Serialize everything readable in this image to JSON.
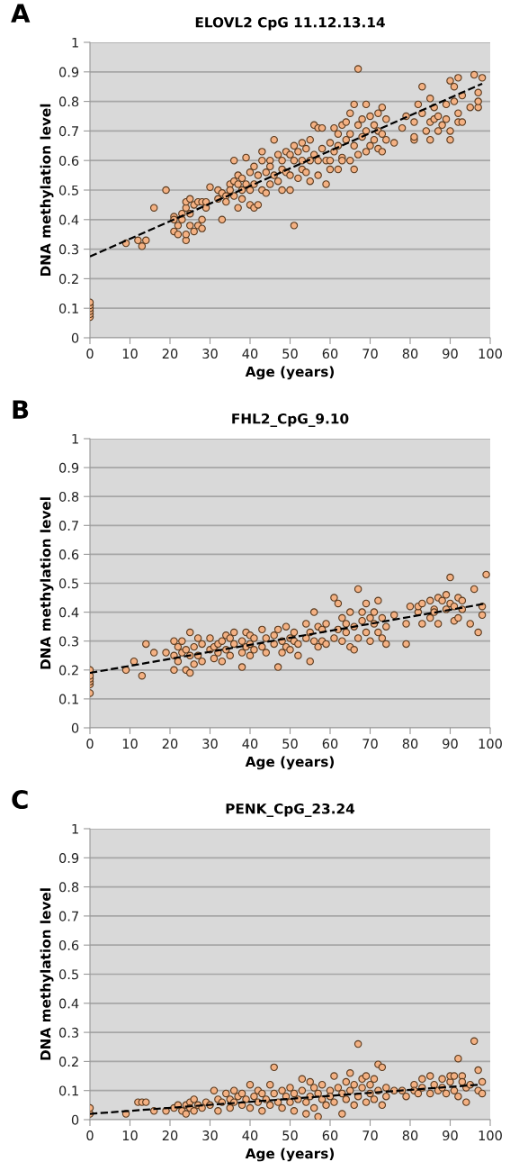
{
  "chart_data": [
    {
      "type": "scatter",
      "title": "ELOVL2 CpG 11.12.13.14",
      "xlabel": "Age (years)",
      "ylabel": "DNA methylation level",
      "annotations": [
        "A"
      ],
      "xlim": [
        0,
        100
      ],
      "xticks": [
        0,
        10,
        20,
        30,
        40,
        50,
        60,
        70,
        80,
        90,
        100
      ],
      "ylim": [
        0,
        1
      ],
      "yticks": [
        0,
        0.1,
        0.2,
        0.3,
        0.4,
        0.5,
        0.6,
        0.7,
        0.8,
        0.9,
        1
      ],
      "grid": "y",
      "marker": "circle",
      "series": [
        {
          "color": "#f4b183",
          "x": [
            0,
            0,
            0,
            0,
            0,
            0,
            9,
            12,
            13,
            14,
            16,
            19,
            21,
            21,
            21,
            22,
            22,
            23,
            23,
            24,
            24,
            24,
            24,
            25,
            25,
            25,
            26,
            26,
            27,
            27,
            28,
            28,
            28,
            29,
            29,
            30,
            32,
            32,
            33,
            33,
            34,
            34,
            35,
            35,
            36,
            36,
            36,
            37,
            37,
            37,
            38,
            38,
            38,
            39,
            39,
            40,
            40,
            40,
            41,
            41,
            41,
            42,
            42,
            43,
            43,
            43,
            44,
            44,
            45,
            45,
            45,
            46,
            46,
            47,
            47,
            48,
            48,
            48,
            49,
            49,
            50,
            50,
            50,
            51,
            51,
            51,
            52,
            52,
            53,
            53,
            53,
            54,
            54,
            55,
            55,
            55,
            56,
            56,
            57,
            57,
            57,
            58,
            58,
            59,
            59,
            60,
            60,
            60,
            61,
            61,
            62,
            62,
            62,
            63,
            63,
            63,
            64,
            64,
            65,
            65,
            65,
            66,
            66,
            66,
            67,
            67,
            67,
            68,
            68,
            69,
            69,
            69,
            70,
            70,
            71,
            71,
            72,
            72,
            72,
            73,
            73,
            73,
            74,
            74,
            76,
            78,
            79,
            81,
            81,
            81,
            82,
            83,
            83,
            84,
            85,
            85,
            85,
            86,
            86,
            87,
            87,
            88,
            89,
            89,
            90,
            90,
            90,
            91,
            91,
            92,
            92,
            92,
            93,
            93,
            95,
            96,
            97,
            97,
            97,
            98
          ],
          "values": [
            0.07,
            0.08,
            0.09,
            0.1,
            0.11,
            0.12,
            0.32,
            0.33,
            0.31,
            0.33,
            0.44,
            0.5,
            0.41,
            0.36,
            0.4,
            0.35,
            0.38,
            0.4,
            0.42,
            0.33,
            0.35,
            0.44,
            0.46,
            0.47,
            0.38,
            0.42,
            0.36,
            0.45,
            0.46,
            0.38,
            0.4,
            0.46,
            0.37,
            0.44,
            0.46,
            0.51,
            0.47,
            0.5,
            0.4,
            0.49,
            0.48,
            0.46,
            0.52,
            0.5,
            0.6,
            0.53,
            0.48,
            0.44,
            0.52,
            0.55,
            0.5,
            0.47,
            0.54,
            0.61,
            0.52,
            0.45,
            0.56,
            0.5,
            0.44,
            0.52,
            0.58,
            0.45,
            0.55,
            0.5,
            0.6,
            0.63,
            0.49,
            0.56,
            0.52,
            0.6,
            0.58,
            0.67,
            0.55,
            0.53,
            0.62,
            0.5,
            0.6,
            0.57,
            0.56,
            0.63,
            0.55,
            0.5,
            0.62,
            0.38,
            0.6,
            0.65,
            0.54,
            0.63,
            0.6,
            0.66,
            0.57,
            0.56,
            0.64,
            0.53,
            0.67,
            0.6,
            0.72,
            0.62,
            0.6,
            0.71,
            0.55,
            0.64,
            0.71,
            0.52,
            0.6,
            0.6,
            0.66,
            0.57,
            0.71,
            0.63,
            0.57,
            0.69,
            0.65,
            0.61,
            0.72,
            0.6,
            0.67,
            0.73,
            0.69,
            0.76,
            0.6,
            0.57,
            0.79,
            0.65,
            0.91,
            0.62,
            0.72,
            0.68,
            0.74,
            0.79,
            0.63,
            0.7,
            0.65,
            0.75,
            0.72,
            0.67,
            0.76,
            0.64,
            0.7,
            0.63,
            0.78,
            0.69,
            0.67,
            0.74,
            0.66,
            0.71,
            0.75,
            0.73,
            0.67,
            0.68,
            0.79,
            0.85,
            0.76,
            0.7,
            0.81,
            0.67,
            0.73,
            0.74,
            0.78,
            0.7,
            0.75,
            0.72,
            0.74,
            0.79,
            0.87,
            0.7,
            0.67,
            0.8,
            0.85,
            0.88,
            0.76,
            0.73,
            0.73,
            0.82,
            0.78,
            0.89,
            0.78,
            0.8,
            0.83,
            0.88
          ]
        },
        {
          "type": "line",
          "color": "#000000",
          "line_style": "dashed",
          "marker": "none",
          "x": [
            0,
            98
          ],
          "values": [
            0.275,
            0.86
          ]
        }
      ]
    },
    {
      "type": "scatter",
      "title": "FHL2_CpG_9.10",
      "xlabel": "Age (years)",
      "ylabel": "DNA methylation level",
      "annotations": [
        "B"
      ],
      "xlim": [
        0,
        100
      ],
      "xticks": [
        0,
        10,
        20,
        30,
        40,
        50,
        60,
        70,
        80,
        90,
        100
      ],
      "ylim": [
        0,
        1
      ],
      "yticks": [
        0,
        0.1,
        0.2,
        0.3,
        0.4,
        0.5,
        0.6,
        0.7,
        0.8,
        0.9,
        1
      ],
      "grid": "y",
      "marker": "circle",
      "series": [
        {
          "color": "#f4b183",
          "x": [
            0,
            0,
            0,
            0,
            0,
            0,
            9,
            11,
            13,
            14,
            16,
            19,
            21,
            21,
            21,
            22,
            22,
            23,
            23,
            24,
            24,
            25,
            25,
            25,
            26,
            26,
            27,
            27,
            28,
            28,
            30,
            30,
            31,
            31,
            32,
            32,
            33,
            33,
            34,
            34,
            35,
            35,
            36,
            36,
            38,
            38,
            38,
            39,
            39,
            40,
            40,
            40,
            41,
            41,
            43,
            43,
            44,
            44,
            46,
            46,
            47,
            47,
            48,
            48,
            49,
            49,
            50,
            50,
            51,
            51,
            52,
            52,
            54,
            54,
            55,
            55,
            56,
            56,
            57,
            57,
            58,
            58,
            59,
            59,
            61,
            61,
            62,
            62,
            63,
            63,
            64,
            64,
            65,
            65,
            66,
            66,
            67,
            67,
            68,
            68,
            69,
            69,
            70,
            70,
            71,
            71,
            72,
            72,
            73,
            73,
            74,
            74,
            76,
            79,
            79,
            80,
            82,
            82,
            83,
            83,
            85,
            85,
            86,
            86,
            87,
            87,
            88,
            89,
            89,
            90,
            90,
            91,
            91,
            92,
            92,
            93,
            93,
            95,
            96,
            97,
            98,
            98,
            99
          ],
          "values": [
            0.12,
            0.15,
            0.16,
            0.17,
            0.18,
            0.2,
            0.2,
            0.23,
            0.18,
            0.29,
            0.26,
            0.26,
            0.2,
            0.3,
            0.25,
            0.23,
            0.28,
            0.26,
            0.3,
            0.2,
            0.27,
            0.19,
            0.33,
            0.25,
            0.28,
            0.22,
            0.31,
            0.25,
            0.23,
            0.29,
            0.27,
            0.31,
            0.24,
            0.28,
            0.29,
            0.26,
            0.3,
            0.23,
            0.27,
            0.32,
            0.25,
            0.31,
            0.29,
            0.33,
            0.21,
            0.3,
            0.26,
            0.33,
            0.28,
            0.29,
            0.25,
            0.32,
            0.31,
            0.27,
            0.34,
            0.28,
            0.26,
            0.31,
            0.32,
            0.29,
            0.21,
            0.34,
            0.26,
            0.3,
            0.35,
            0.28,
            0.27,
            0.31,
            0.3,
            0.33,
            0.29,
            0.25,
            0.31,
            0.36,
            0.23,
            0.33,
            0.4,
            0.3,
            0.28,
            0.35,
            0.34,
            0.3,
            0.29,
            0.36,
            0.45,
            0.31,
            0.43,
            0.34,
            0.3,
            0.38,
            0.33,
            0.36,
            0.28,
            0.4,
            0.27,
            0.35,
            0.48,
            0.31,
            0.4,
            0.37,
            0.43,
            0.33,
            0.3,
            0.38,
            0.36,
            0.4,
            0.44,
            0.33,
            0.38,
            0.31,
            0.29,
            0.35,
            0.39,
            0.29,
            0.36,
            0.42,
            0.4,
            0.42,
            0.36,
            0.43,
            0.44,
            0.38,
            0.41,
            0.4,
            0.45,
            0.36,
            0.44,
            0.41,
            0.46,
            0.52,
            0.43,
            0.37,
            0.42,
            0.45,
            0.38,
            0.41,
            0.44,
            0.36,
            0.48,
            0.33,
            0.42,
            0.39,
            0.53
          ]
        },
        {
          "type": "line",
          "color": "#000000",
          "line_style": "dashed",
          "marker": "none",
          "x": [
            0,
            99
          ],
          "values": [
            0.19,
            0.43
          ]
        }
      ]
    },
    {
      "type": "scatter",
      "title": "PENK_CpG_23.24",
      "xlabel": "Age (years)",
      "ylabel": "DNA methylation level",
      "annotations": [
        "C"
      ],
      "xlim": [
        0,
        100
      ],
      "xticks": [
        0,
        10,
        20,
        30,
        40,
        50,
        60,
        70,
        80,
        90,
        100
      ],
      "ylim": [
        0,
        1
      ],
      "yticks": [
        0,
        0.1,
        0.2,
        0.3,
        0.4,
        0.5,
        0.6,
        0.7,
        0.8,
        0.9,
        1
      ],
      "grid": "y",
      "marker": "circle",
      "series": [
        {
          "color": "#f4b183",
          "x": [
            0,
            0,
            9,
            12,
            13,
            14,
            16,
            19,
            21,
            22,
            23,
            24,
            24,
            25,
            25,
            26,
            26,
            27,
            28,
            29,
            30,
            31,
            32,
            32,
            33,
            34,
            35,
            35,
            36,
            36,
            37,
            38,
            38,
            39,
            40,
            40,
            41,
            42,
            42,
            43,
            43,
            44,
            45,
            45,
            46,
            46,
            47,
            48,
            48,
            49,
            50,
            50,
            51,
            51,
            52,
            53,
            53,
            54,
            54,
            55,
            55,
            56,
            56,
            57,
            57,
            58,
            58,
            59,
            60,
            60,
            61,
            61,
            62,
            63,
            63,
            64,
            64,
            65,
            65,
            66,
            66,
            67,
            67,
            68,
            68,
            69,
            69,
            70,
            70,
            71,
            71,
            72,
            72,
            73,
            73,
            74,
            74,
            76,
            78,
            79,
            81,
            81,
            82,
            83,
            83,
            85,
            85,
            86,
            87,
            88,
            88,
            89,
            90,
            90,
            91,
            91,
            92,
            92,
            93,
            93,
            94,
            94,
            95,
            96,
            97,
            97,
            98,
            98
          ],
          "values": [
            0.02,
            0.04,
            0.02,
            0.06,
            0.06,
            0.06,
            0.03,
            0.03,
            0.04,
            0.05,
            0.03,
            0.05,
            0.02,
            0.06,
            0.04,
            0.07,
            0.03,
            0.05,
            0.04,
            0.06,
            0.05,
            0.1,
            0.03,
            0.07,
            0.06,
            0.09,
            0.04,
            0.07,
            0.1,
            0.06,
            0.08,
            0.05,
            0.09,
            0.07,
            0.12,
            0.04,
            0.08,
            0.06,
            0.1,
            0.03,
            0.09,
            0.07,
            0.12,
            0.05,
            0.18,
            0.09,
            0.06,
            0.1,
            0.04,
            0.08,
            0.11,
            0.06,
            0.09,
            0.03,
            0.07,
            0.14,
            0.1,
            0.06,
            0.02,
            0.13,
            0.08,
            0.04,
            0.11,
            0.09,
            0.01,
            0.07,
            0.12,
            0.05,
            0.1,
            0.08,
            0.15,
            0.06,
            0.11,
            0.02,
            0.09,
            0.13,
            0.07,
            0.16,
            0.1,
            0.05,
            0.12,
            0.26,
            0.08,
            0.14,
            0.11,
            0.06,
            0.15,
            0.09,
            0.12,
            0.14,
            0.07,
            0.19,
            0.1,
            0.18,
            0.05,
            0.08,
            0.11,
            0.1,
            0.1,
            0.08,
            0.12,
            0.1,
            0.09,
            0.14,
            0.11,
            0.15,
            0.09,
            0.12,
            0.1,
            0.14,
            0.11,
            0.09,
            0.13,
            0.15,
            0.1,
            0.15,
            0.21,
            0.08,
            0.15,
            0.13,
            0.06,
            0.11,
            0.12,
            0.27,
            0.17,
            0.1,
            0.09,
            0.13
          ]
        },
        {
          "type": "line",
          "color": "#000000",
          "line_style": "dashed",
          "marker": "none",
          "x": [
            0,
            97
          ],
          "values": [
            0.02,
            0.12
          ]
        }
      ]
    }
  ]
}
